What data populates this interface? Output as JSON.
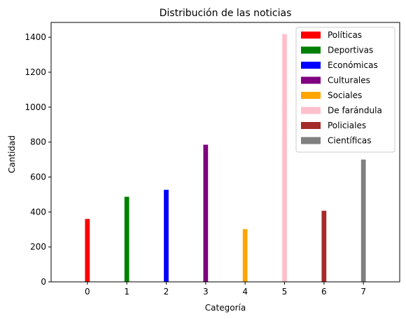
{
  "chart_data": {
    "type": "bar",
    "title": "Distribución de las noticias",
    "xlabel": "Categoría",
    "ylabel": "Cantidad",
    "xlim": [
      -0.92,
      7.92
    ],
    "ylim": [
      0,
      1485
    ],
    "xticks": [
      "0",
      "1",
      "2",
      "3",
      "4",
      "5",
      "6",
      "7"
    ],
    "yticks": [
      "0",
      "200",
      "400",
      "600",
      "800",
      "1000",
      "1200",
      "1400"
    ],
    "ytick_values": [
      0,
      200,
      400,
      600,
      800,
      1000,
      1200,
      1400
    ],
    "grid": false,
    "legend_position": "top-right",
    "series": [
      {
        "name": "Políticas",
        "x": 0,
        "value": 360,
        "color": "#ff0000"
      },
      {
        "name": "Deportivas",
        "x": 1,
        "value": 487,
        "color": "#008000"
      },
      {
        "name": "Económicas",
        "x": 2,
        "value": 527,
        "color": "#0000ff"
      },
      {
        "name": "Culturales",
        "x": 3,
        "value": 785,
        "color": "#800080"
      },
      {
        "name": "Sociales",
        "x": 4,
        "value": 302,
        "color": "#ffa500"
      },
      {
        "name": "De farándula",
        "x": 5,
        "value": 1418,
        "color": "#ffc0cb"
      },
      {
        "name": "Policiales",
        "x": 6,
        "value": 407,
        "color": "#a52a2a"
      },
      {
        "name": "Científicas",
        "x": 7,
        "value": 700,
        "color": "#808080"
      }
    ]
  }
}
